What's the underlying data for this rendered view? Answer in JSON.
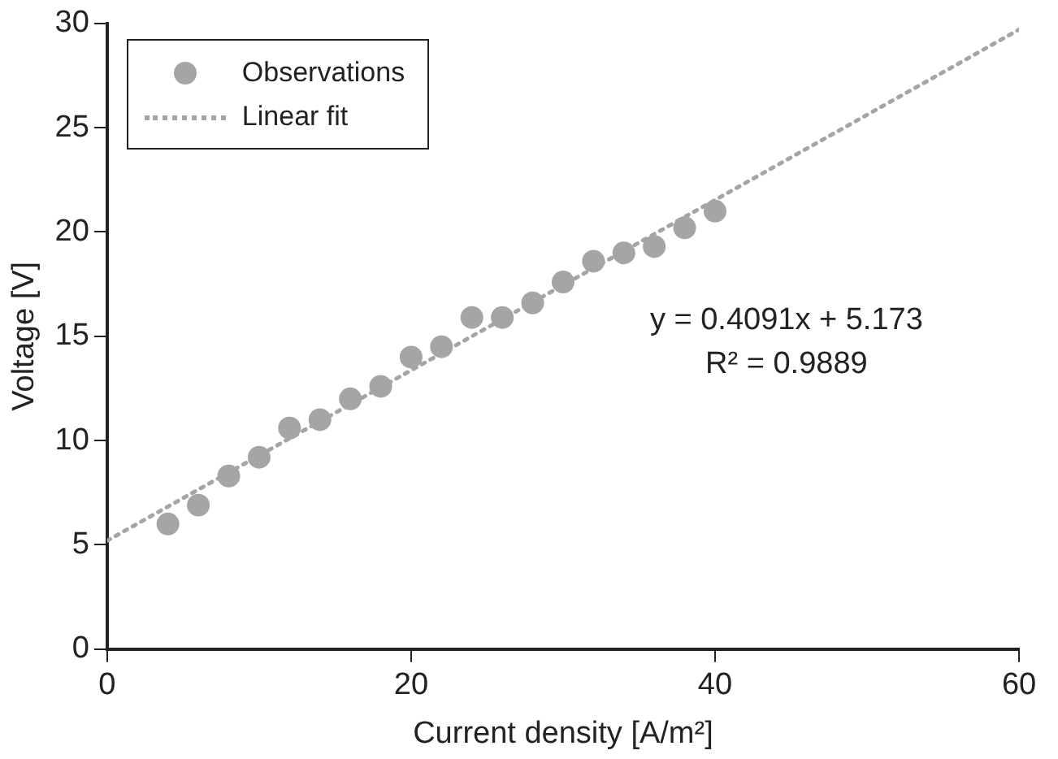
{
  "chart_data": {
    "type": "scatter",
    "xlabel": "Current density [A/m²]",
    "ylabel": "Voltage [V]",
    "xlim": [
      0,
      60
    ],
    "xticks": [
      0,
      20,
      40,
      60
    ],
    "ylim": [
      0,
      30
    ],
    "yticks": [
      0,
      5,
      10,
      15,
      20,
      25,
      30
    ],
    "grid": false,
    "legend": "top left",
    "marker": "circle",
    "series": [
      {
        "name": "Observations",
        "type": "scatter",
        "color": "#a5a5a5",
        "x": [
          4,
          6,
          8,
          10,
          12,
          14,
          16,
          18,
          20,
          22,
          24,
          26,
          28,
          30,
          32,
          34,
          36,
          38,
          40
        ],
        "values": [
          6.0,
          6.9,
          8.3,
          9.2,
          10.6,
          11.0,
          12.0,
          12.6,
          14.0,
          14.5,
          15.9,
          15.9,
          16.6,
          17.6,
          18.6,
          19.0,
          19.3,
          20.2,
          21.0
        ]
      },
      {
        "name": "Linear fit",
        "type": "line",
        "color": "#a5a5a5",
        "line_style": "dotted",
        "marker": "none",
        "x": [
          0,
          60
        ],
        "values": [
          5.2,
          29.7
        ]
      }
    ],
    "annotations": [
      "y = 0.4091x + 5.173",
      "R² = 0.9889"
    ]
  }
}
